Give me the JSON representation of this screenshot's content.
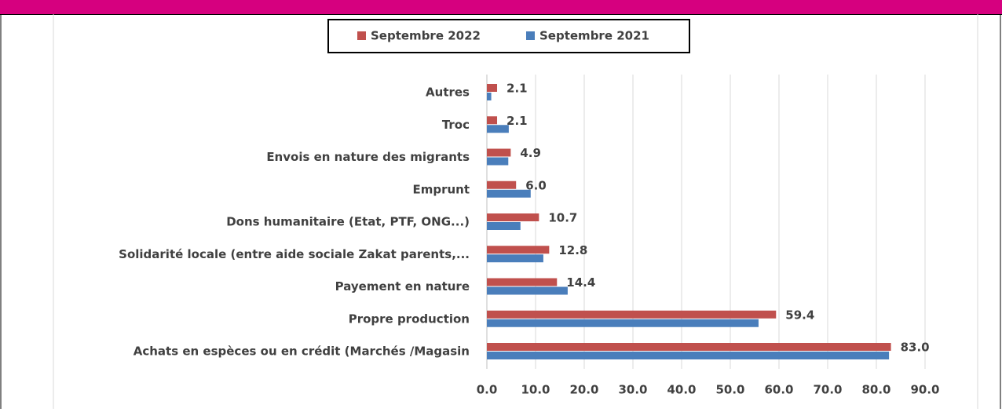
{
  "chart_data": {
    "type": "bar",
    "orientation": "horizontal",
    "categories": [
      "Autres",
      "Troc",
      "Envois en nature des migrants",
      "Emprunt",
      "Dons humanitaire (Etat, PTF, ONG...)",
      "Solidarité locale (entre aide sociale Zakat parents,...",
      "Payement en nature",
      "Propre production",
      "Achats  en espèces ou en crédit (Marchés /Magasin"
    ],
    "series": [
      {
        "name": "Septembre 2022",
        "color": "#c0504d",
        "values": [
          2.1,
          2.1,
          4.9,
          6.0,
          10.7,
          12.8,
          14.4,
          59.4,
          83.0
        ],
        "value_labels": [
          "2.1",
          "2.1",
          "4.9",
          "6.0",
          "10.7",
          "12.8",
          "14.4",
          "59.4",
          "83.0"
        ]
      },
      {
        "name": "Septembre 2021",
        "color": "#4a7ebb",
        "values": [
          0.9,
          4.5,
          4.4,
          9.0,
          6.9,
          11.6,
          16.6,
          55.8,
          82.6
        ]
      }
    ],
    "xlim": [
      0,
      90
    ],
    "xticks": [
      {
        "value": 0,
        "label": "0.0"
      },
      {
        "value": 10,
        "label": "10.0"
      },
      {
        "value": 20,
        "label": "20.0"
      },
      {
        "value": 30,
        "label": "30.0"
      },
      {
        "value": 40,
        "label": "40.0"
      },
      {
        "value": 50,
        "label": "50.0"
      },
      {
        "value": 60,
        "label": "60.0"
      },
      {
        "value": 70,
        "label": "70.0"
      },
      {
        "value": 80,
        "label": "80.0"
      },
      {
        "value": 90,
        "label": "90.0"
      }
    ],
    "grid": true,
    "legend": "top"
  }
}
